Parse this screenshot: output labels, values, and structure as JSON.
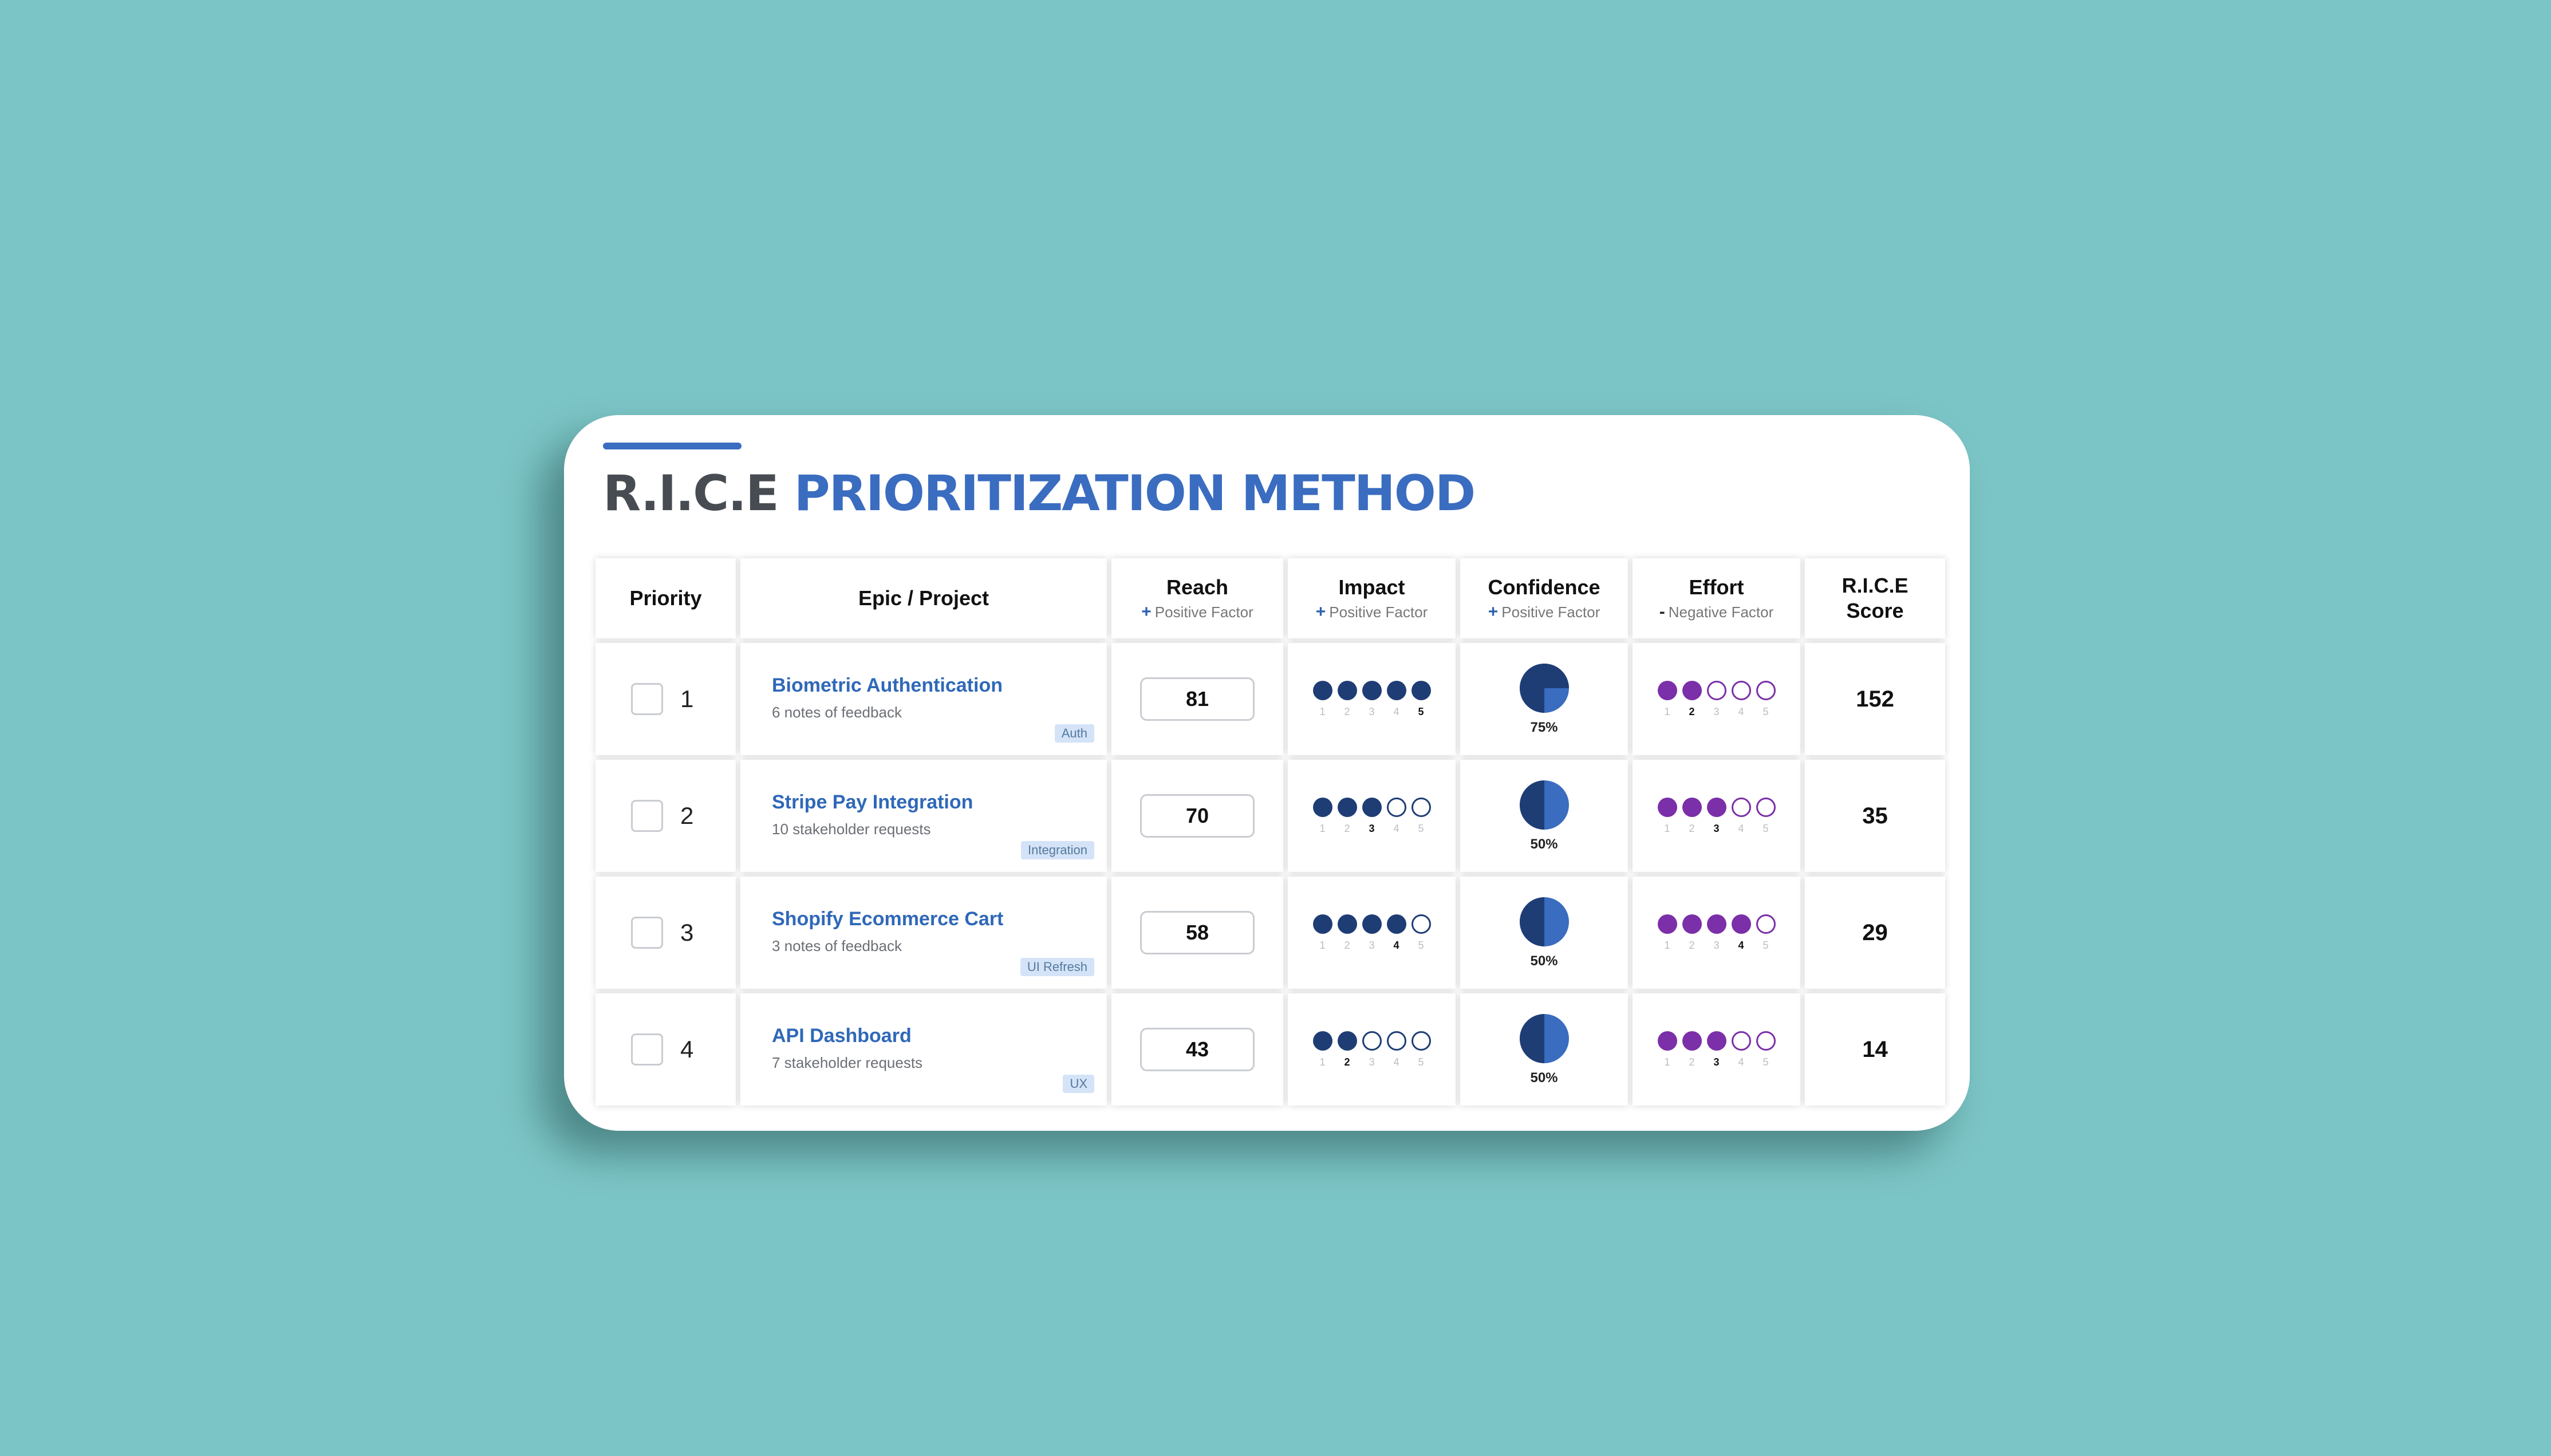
{
  "title": {
    "part1": "R.I.C.E",
    "part2": "PRIORITIZATION METHOD"
  },
  "colors": {
    "background": "#7cc5c6",
    "accent_blue": "#3a6cc0",
    "impact_navy": "#1f3d75",
    "effort_purple": "#7b2fa8",
    "title_gray": "#474c52"
  },
  "headers": {
    "priority": "Priority",
    "epic": "Epic / Project",
    "reach": {
      "title": "Reach",
      "sign": "+",
      "sub": "Positive Factor"
    },
    "impact": {
      "title": "Impact",
      "sign": "+",
      "sub": "Positive Factor"
    },
    "confidence": {
      "title": "Confidence",
      "sign": "+",
      "sub": "Positive Factor"
    },
    "effort": {
      "title": "Effort",
      "sign": "-",
      "sub": "Negative Factor"
    },
    "score": {
      "line1": "R.I.C.E",
      "line2": "Score"
    }
  },
  "scale_labels": [
    "1",
    "2",
    "3",
    "4",
    "5"
  ],
  "rows": [
    {
      "priority": "1",
      "title": "Biometric Authentication",
      "note": "6 notes of feedback",
      "tag": "Auth",
      "reach": "81",
      "impact": 5,
      "confidence": 75,
      "confidence_label": "75%",
      "effort": 2,
      "score": "152"
    },
    {
      "priority": "2",
      "title": "Stripe Pay Integration",
      "note": "10 stakeholder requests",
      "tag": "Integration",
      "reach": "70",
      "impact": 3,
      "confidence": 50,
      "confidence_label": "50%",
      "effort": 3,
      "score": "35"
    },
    {
      "priority": "3",
      "title": "Shopify Ecommerce Cart",
      "note": "3 notes of feedback",
      "tag": "UI Refresh",
      "reach": "58",
      "impact": 4,
      "confidence": 50,
      "confidence_label": "50%",
      "effort": 4,
      "score": "29"
    },
    {
      "priority": "4",
      "title": "API Dashboard",
      "note": "7 stakeholder requests",
      "tag": "UX",
      "reach": "43",
      "impact": 2,
      "confidence": 50,
      "confidence_label": "50%",
      "effort": 3,
      "score": "14"
    }
  ]
}
